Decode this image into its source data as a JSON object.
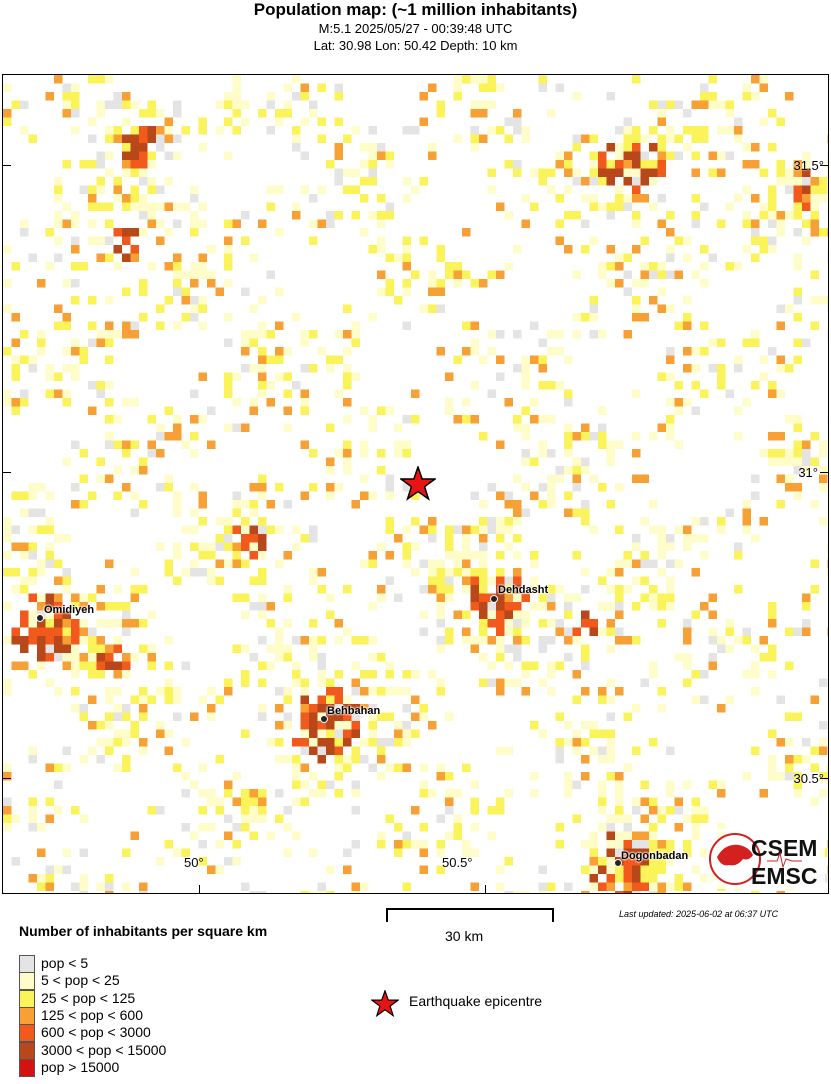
{
  "header": {
    "title": "Population map: (~1 million inhabitants)",
    "line1": "M:5.1 2025/05/27 - 00:39:48 UTC",
    "line2": "Lat: 30.98 Lon: 50.42 Depth: 10 km"
  },
  "map": {
    "lat_ticks": [
      "31.5°",
      "31°",
      "30.5°"
    ],
    "lon_ticks": [
      "50°",
      "50.5°"
    ],
    "cities": [
      {
        "name": "Omidiyeh"
      },
      {
        "name": "Behbahan"
      },
      {
        "name": "Dehdasht"
      },
      {
        "name": "Dogonbadan"
      }
    ],
    "epicentre_icon": "red-star-icon",
    "logo": {
      "top": "CSEM",
      "bottom": "EMSC"
    }
  },
  "scale_bar": {
    "label": "30 km"
  },
  "last_updated": "Last updated: 2025-06-02 at 06:37 UTC",
  "legend": {
    "title": "Number of inhabitants per square km",
    "items": [
      {
        "label": "pop < 5",
        "color": "#e4e4e4"
      },
      {
        "label": "5 < pop < 25",
        "color": "#fefcc8"
      },
      {
        "label": "25 < pop < 125",
        "color": "#fbf35a"
      },
      {
        "label": "125 < pop < 600",
        "color": "#f6a035"
      },
      {
        "label": "600 < pop < 3000",
        "color": "#f15a1c"
      },
      {
        "label": "3000 < pop < 15000",
        "color": "#b8471a"
      },
      {
        "label": "pop > 15000",
        "color": "#d41212"
      }
    ],
    "epicentre_label": "Earthquake epicentre"
  }
}
